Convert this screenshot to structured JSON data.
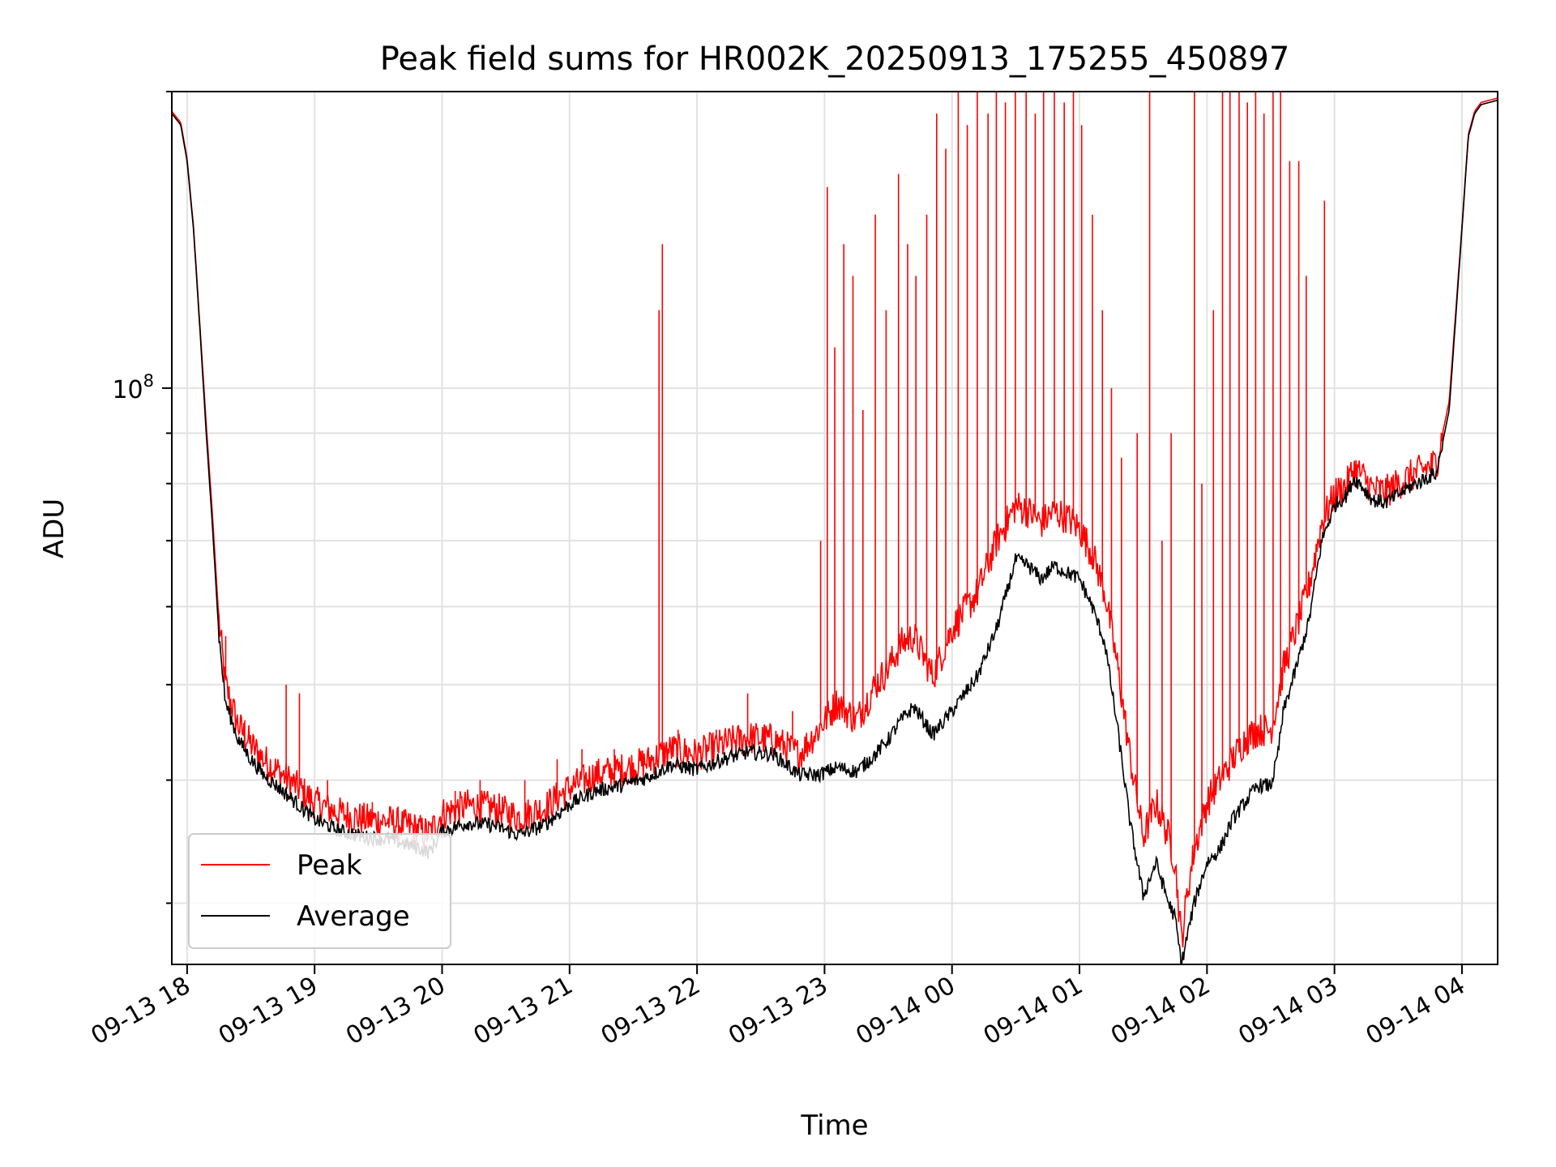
{
  "chart_data": {
    "type": "line",
    "title": "Peak field sums for HR002K_20250913_175255_450897",
    "xlabel": "Time",
    "ylabel": "ADU",
    "yscale": "log",
    "ylim": [
      26000000,
      200000000
    ],
    "xlim_hours": [
      17.88,
      28.28
    ],
    "grid": true,
    "legend_position": "lower-left",
    "x_ticks": [
      {
        "label": "09-13 18",
        "hour": 18
      },
      {
        "label": "09-13 19",
        "hour": 19
      },
      {
        "label": "09-13 20",
        "hour": 20
      },
      {
        "label": "09-13 21",
        "hour": 21
      },
      {
        "label": "09-13 22",
        "hour": 22
      },
      {
        "label": "09-13 23",
        "hour": 23
      },
      {
        "label": "09-14 00",
        "hour": 24
      },
      {
        "label": "09-14 01",
        "hour": 25
      },
      {
        "label": "09-14 02",
        "hour": 26
      },
      {
        "label": "09-14 03",
        "hour": 27
      },
      {
        "label": "09-14 04",
        "hour": 28
      }
    ],
    "y_major_ticks": [
      {
        "base": "10",
        "exp": "8",
        "value": 100000000
      }
    ],
    "y_minor_ticks": [
      30000000,
      40000000,
      50000000,
      60000000,
      70000000,
      80000000,
      90000000,
      200000000
    ],
    "series": [
      {
        "name": "Average",
        "color": "#000000",
        "x_hours": [
          17.88,
          17.95,
          18.0,
          18.05,
          18.1,
          18.15,
          18.2,
          18.25,
          18.3,
          18.4,
          18.5,
          18.6,
          18.8,
          19.0,
          19.2,
          19.4,
          19.6,
          19.8,
          19.9,
          20.0,
          20.2,
          20.4,
          20.6,
          20.8,
          21.0,
          21.2,
          21.4,
          21.6,
          21.8,
          22.0,
          22.2,
          22.4,
          22.6,
          22.8,
          22.95,
          23.1,
          23.25,
          23.4,
          23.5,
          23.6,
          23.7,
          23.85,
          24.0,
          24.2,
          24.35,
          24.5,
          24.6,
          24.7,
          24.8,
          24.9,
          25.0,
          25.1,
          25.2,
          25.3,
          25.4,
          25.5,
          25.6,
          25.7,
          25.75,
          25.8,
          25.85,
          25.9,
          26.0,
          26.1,
          26.2,
          26.3,
          26.4,
          26.5,
          26.55,
          26.6,
          26.7,
          26.8,
          26.9,
          27.0,
          27.1,
          27.15,
          27.2,
          27.3,
          27.4,
          27.5,
          27.6,
          27.8,
          27.9,
          28.0,
          28.05,
          28.1,
          28.15,
          28.28
        ],
        "values": [
          190000000,
          185000000,
          170000000,
          145000000,
          115000000,
          90000000,
          72000000,
          56000000,
          48000000,
          44000000,
          42000000,
          40500000,
          38500000,
          36500000,
          35500000,
          35000000,
          34800000,
          34200000,
          33800000,
          35500000,
          36200000,
          36000000,
          35200000,
          36000000,
          37800000,
          39000000,
          39500000,
          40200000,
          41500000,
          41000000,
          42000000,
          42700000,
          42500000,
          40500000,
          40500000,
          41200000,
          40800000,
          42500000,
          44000000,
          46000000,
          47500000,
          44500000,
          47000000,
          51000000,
          57000000,
          67000000,
          66000000,
          64000000,
          66000000,
          65000000,
          64000000,
          60000000,
          55000000,
          45000000,
          36000000,
          30500000,
          33000000,
          30000000,
          29000000,
          26000000,
          28000000,
          30000000,
          33000000,
          34000000,
          36500000,
          38000000,
          39500000,
          39500000,
          42000000,
          47000000,
          52000000,
          58000000,
          70000000,
          76000000,
          78000000,
          81000000,
          80000000,
          77000000,
          76500000,
          78000000,
          79500000,
          82000000,
          95000000,
          145000000,
          180000000,
          190000000,
          194000000,
          196000000
        ]
      },
      {
        "name": "Peak",
        "color": "#ff0000",
        "x_hours": [
          17.88,
          17.95,
          18.0,
          18.05,
          18.1,
          18.15,
          18.2,
          18.25,
          18.3,
          18.4,
          18.5,
          18.6,
          18.8,
          19.0,
          19.2,
          19.4,
          19.6,
          19.8,
          19.9,
          20.0,
          20.2,
          20.4,
          20.6,
          20.8,
          21.0,
          21.2,
          21.4,
          21.6,
          21.8,
          22.0,
          22.2,
          22.4,
          22.6,
          22.8,
          22.95,
          23.1,
          23.25,
          23.4,
          23.5,
          23.6,
          23.7,
          23.85,
          24.0,
          24.2,
          24.35,
          24.5,
          24.6,
          24.7,
          24.8,
          24.9,
          25.0,
          25.1,
          25.2,
          25.3,
          25.4,
          25.5,
          25.6,
          25.7,
          25.75,
          25.8,
          25.85,
          25.9,
          26.0,
          26.1,
          26.2,
          26.3,
          26.4,
          26.5,
          26.55,
          26.6,
          26.7,
          26.8,
          26.9,
          27.0,
          27.1,
          27.15,
          27.2,
          27.3,
          27.4,
          27.5,
          27.6,
          27.8,
          27.9,
          28.0,
          28.05,
          28.1,
          28.15,
          28.28
        ],
        "values": [
          191000000,
          186000000,
          171000000,
          146000000,
          116000000,
          92000000,
          74000000,
          58000000,
          50000000,
          45500000,
          43500000,
          42000000,
          40000000,
          38000000,
          37000000,
          36500000,
          36300000,
          35700000,
          35300000,
          37000000,
          37700000,
          37500000,
          36700000,
          37500000,
          39300000,
          40500000,
          41000000,
          41700000,
          43000000,
          42500000,
          43500000,
          44200000,
          44000000,
          42500000,
          45000000,
          48000000,
          46000000,
          50000000,
          52000000,
          55000000,
          56000000,
          51000000,
          57000000,
          62000000,
          70000000,
          76000000,
          75000000,
          73000000,
          75000000,
          74000000,
          72000000,
          68000000,
          62000000,
          52000000,
          42000000,
          35000000,
          38000000,
          35000000,
          33000000,
          27500000,
          31000000,
          34000000,
          38000000,
          40000000,
          42000000,
          44000000,
          45000000,
          45000000,
          48000000,
          52000000,
          57000000,
          63000000,
          73000000,
          78000000,
          80000000,
          83000000,
          82000000,
          79000000,
          78500000,
          80000000,
          81500000,
          84000000,
          97000000,
          146000000,
          181000000,
          191000000,
          195000000,
          197000000
        ]
      }
    ],
    "peak_spikes": [
      {
        "hour": 18.3,
        "value": 56000000
      },
      {
        "hour": 18.45,
        "value": 46000000
      },
      {
        "hour": 18.78,
        "value": 50000000
      },
      {
        "hour": 18.88,
        "value": 49000000
      },
      {
        "hour": 19.1,
        "value": 40000000
      },
      {
        "hour": 19.45,
        "value": 38000000
      },
      {
        "hour": 19.75,
        "value": 37000000
      },
      {
        "hour": 20.1,
        "value": 39000000
      },
      {
        "hour": 20.3,
        "value": 40000000
      },
      {
        "hour": 20.5,
        "value": 38000000
      },
      {
        "hour": 20.65,
        "value": 40000000
      },
      {
        "hour": 20.9,
        "value": 42000000
      },
      {
        "hour": 21.1,
        "value": 43000000
      },
      {
        "hour": 21.35,
        "value": 43000000
      },
      {
        "hour": 21.7,
        "value": 120000000
      },
      {
        "hour": 21.73,
        "value": 140000000
      },
      {
        "hour": 21.85,
        "value": 45000000
      },
      {
        "hour": 22.15,
        "value": 45000000
      },
      {
        "hour": 22.4,
        "value": 49000000
      },
      {
        "hour": 22.75,
        "value": 47000000
      },
      {
        "hour": 22.97,
        "value": 70000000
      },
      {
        "hour": 23.02,
        "value": 160000000
      },
      {
        "hour": 23.08,
        "value": 110000000
      },
      {
        "hour": 23.15,
        "value": 140000000
      },
      {
        "hour": 23.22,
        "value": 130000000
      },
      {
        "hour": 23.3,
        "value": 95000000
      },
      {
        "hour": 23.4,
        "value": 150000000
      },
      {
        "hour": 23.48,
        "value": 120000000
      },
      {
        "hour": 23.58,
        "value": 165000000
      },
      {
        "hour": 23.65,
        "value": 140000000
      },
      {
        "hour": 23.72,
        "value": 130000000
      },
      {
        "hour": 23.8,
        "value": 150000000
      },
      {
        "hour": 23.88,
        "value": 190000000
      },
      {
        "hour": 23.95,
        "value": 175000000
      },
      {
        "hour": 24.05,
        "value": 200000000
      },
      {
        "hour": 24.12,
        "value": 185000000
      },
      {
        "hour": 24.2,
        "value": 200000000
      },
      {
        "hour": 24.28,
        "value": 190000000
      },
      {
        "hour": 24.35,
        "value": 200000000
      },
      {
        "hour": 24.42,
        "value": 195000000
      },
      {
        "hour": 24.5,
        "value": 200000000
      },
      {
        "hour": 24.58,
        "value": 200000000
      },
      {
        "hour": 24.65,
        "value": 190000000
      },
      {
        "hour": 24.72,
        "value": 200000000
      },
      {
        "hour": 24.8,
        "value": 200000000
      },
      {
        "hour": 24.88,
        "value": 195000000
      },
      {
        "hour": 24.95,
        "value": 200000000
      },
      {
        "hour": 25.02,
        "value": 185000000
      },
      {
        "hour": 25.1,
        "value": 150000000
      },
      {
        "hour": 25.18,
        "value": 120000000
      },
      {
        "hour": 25.25,
        "value": 100000000
      },
      {
        "hour": 25.33,
        "value": 85000000
      },
      {
        "hour": 25.45,
        "value": 90000000
      },
      {
        "hour": 25.55,
        "value": 200000000
      },
      {
        "hour": 25.65,
        "value": 70000000
      },
      {
        "hour": 25.72,
        "value": 90000000
      },
      {
        "hour": 25.9,
        "value": 200000000
      },
      {
        "hour": 25.96,
        "value": 80000000
      },
      {
        "hour": 26.05,
        "value": 120000000
      },
      {
        "hour": 26.12,
        "value": 200000000
      },
      {
        "hour": 26.18,
        "value": 200000000
      },
      {
        "hour": 26.25,
        "value": 200000000
      },
      {
        "hour": 26.32,
        "value": 195000000
      },
      {
        "hour": 26.38,
        "value": 200000000
      },
      {
        "hour": 26.45,
        "value": 190000000
      },
      {
        "hour": 26.52,
        "value": 200000000
      },
      {
        "hour": 26.58,
        "value": 200000000
      },
      {
        "hour": 26.65,
        "value": 170000000
      },
      {
        "hour": 26.72,
        "value": 170000000
      },
      {
        "hour": 26.78,
        "value": 130000000
      },
      {
        "hour": 26.92,
        "value": 155000000
      }
    ]
  },
  "legend": {
    "peak_label": "Peak",
    "average_label": "Average"
  }
}
